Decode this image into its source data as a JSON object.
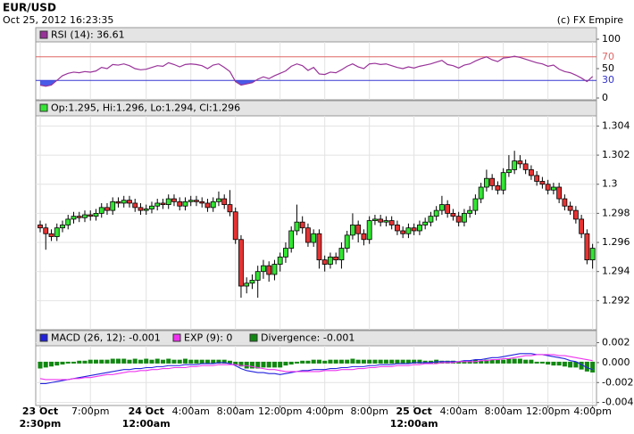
{
  "header": {
    "symbol": "EUR/USD",
    "timestamp": "Oct 25, 2012 16:23:35",
    "copyright": "(c) FX Empire"
  },
  "x_axis": {
    "xlim": [
      -0.8,
      99.7
    ],
    "xticks": [
      {
        "value": 9,
        "label": "7:00pm"
      },
      {
        "value": 27,
        "label": "4:00am"
      },
      {
        "value": 35,
        "label": "8:00am"
      },
      {
        "value": 43,
        "label": "12:00pm"
      },
      {
        "value": 51,
        "label": "4:00pm"
      },
      {
        "value": 59,
        "label": "8:00pm"
      },
      {
        "value": 75,
        "label": "4:00am"
      },
      {
        "value": 83,
        "label": "8:00am"
      },
      {
        "value": 91,
        "label": "12:00pm"
      },
      {
        "value": 99,
        "label": "4:00pm"
      }
    ],
    "day_ticks": [
      {
        "value": 0,
        "label": "23 Oct",
        "time": "2:30pm"
      },
      {
        "value": 19,
        "label": "24 Oct",
        "time": "12:00am"
      },
      {
        "value": 67,
        "label": "25 Oct",
        "time": "12:00am"
      }
    ]
  },
  "chart_data": [
    {
      "type": "line",
      "legend": "RSI (14): 36.61",
      "color": "#993399",
      "values": [
        22,
        20,
        22,
        30,
        38,
        42,
        44,
        43,
        45,
        44,
        46,
        52,
        50,
        57,
        56,
        58,
        55,
        50,
        48,
        49,
        52,
        55,
        54,
        60,
        57,
        53,
        57,
        58,
        57,
        55,
        50,
        56,
        58,
        52,
        45,
        28,
        22,
        24,
        26,
        32,
        36,
        33,
        38,
        42,
        46,
        54,
        58,
        55,
        47,
        52,
        41,
        40,
        44,
        43,
        48,
        54,
        58,
        53,
        50,
        58,
        59,
        57,
        58,
        55,
        52,
        50,
        53,
        51,
        54,
        56,
        58,
        61,
        64,
        57,
        55,
        51,
        56,
        58,
        63,
        67,
        70,
        65,
        62,
        68,
        69,
        71,
        69,
        66,
        63,
        60,
        58,
        54,
        56,
        49,
        45,
        43,
        39,
        34,
        28,
        36.61
      ],
      "ylim": [
        0,
        100
      ],
      "yticks": [
        0,
        50,
        100
      ],
      "levels": [
        {
          "value": 70,
          "color": "#e06666"
        },
        {
          "value": 30,
          "color": "#3333cc",
          "fill": "#4a5ae8"
        }
      ]
    },
    {
      "type": "candlestick",
      "legend": "Op:1.295, Hi:1.296, Lo:1.294, Cl:1.296",
      "up_color": "#33e633",
      "down_color": "#e63333",
      "open": [
        1.2972,
        1.297,
        1.2966,
        1.2964,
        1.297,
        1.2972,
        1.2976,
        1.2978,
        1.2977,
        1.2979,
        1.2978,
        1.298,
        1.2984,
        1.2982,
        1.2988,
        1.2987,
        1.2989,
        1.2987,
        1.2984,
        1.2982,
        1.2983,
        1.2985,
        1.2987,
        1.2986,
        1.299,
        1.2988,
        1.2985,
        1.2988,
        1.2989,
        1.2988,
        1.2987,
        1.2984,
        1.2988,
        1.299,
        1.2986,
        1.2981,
        1.2962,
        1.293,
        1.2932,
        1.2934,
        1.294,
        1.2944,
        1.2938,
        1.2945,
        1.295,
        1.2956,
        1.2968,
        1.2974,
        1.297,
        1.296,
        1.2966,
        1.2948,
        1.2945,
        1.295,
        1.2948,
        1.2956,
        1.2965,
        1.2972,
        1.2966,
        1.2962,
        1.2975,
        1.2976,
        1.2974,
        1.2975,
        1.2972,
        1.2968,
        1.2966,
        1.297,
        1.2968,
        1.2972,
        1.2974,
        1.2978,
        1.2982,
        1.2986,
        1.298,
        1.2978,
        1.2974,
        1.298,
        1.2982,
        1.299,
        1.2998,
        1.3004,
        1.2999,
        1.2996,
        1.3008,
        1.301,
        1.3016,
        1.3014,
        1.301,
        1.3006,
        1.3002,
        1.3,
        1.2996,
        1.2998,
        1.299,
        1.2985,
        1.2982,
        1.2976,
        1.2966,
        1.2948
      ],
      "high": [
        1.2975,
        1.2973,
        1.2969,
        1.2973,
        1.2975,
        1.2979,
        1.2981,
        1.2981,
        1.2982,
        1.2982,
        1.2983,
        1.2987,
        1.2987,
        1.2991,
        1.2991,
        1.2992,
        1.2992,
        1.299,
        1.2987,
        1.2986,
        1.2988,
        1.299,
        1.299,
        1.2993,
        1.2993,
        1.2991,
        1.2991,
        1.2992,
        1.2992,
        1.2991,
        1.299,
        1.2991,
        1.2995,
        1.2993,
        1.2996,
        1.2984,
        1.2965,
        1.2936,
        1.2938,
        1.2944,
        1.2948,
        1.2947,
        1.2948,
        1.2953,
        1.296,
        1.2971,
        1.2986,
        1.2978,
        1.2973,
        1.2969,
        1.2969,
        1.2951,
        1.2953,
        1.2953,
        1.296,
        1.2968,
        1.298,
        1.2975,
        1.2969,
        1.2978,
        1.2979,
        1.2979,
        1.2978,
        1.2978,
        1.2975,
        1.2971,
        1.2973,
        1.2973,
        1.2975,
        1.2977,
        1.2981,
        1.2985,
        1.2992,
        1.2989,
        1.2983,
        1.2981,
        1.2983,
        1.2985,
        1.2993,
        1.3001,
        1.301,
        1.3007,
        1.3002,
        1.3011,
        1.302,
        1.3023,
        1.302,
        1.3017,
        1.3013,
        1.3009,
        1.3005,
        1.3003,
        1.3001,
        1.3001,
        1.2993,
        1.2988,
        1.2985,
        1.2979,
        1.2969,
        1.2959
      ],
      "low": [
        1.2967,
        1.2955,
        1.2961,
        1.2961,
        1.2967,
        1.2969,
        1.2973,
        1.2974,
        1.2974,
        1.2975,
        1.2975,
        1.2977,
        1.2979,
        1.2979,
        1.2984,
        1.2984,
        1.2984,
        1.2981,
        1.2979,
        1.2979,
        1.298,
        1.2982,
        1.2983,
        1.2983,
        1.2985,
        1.2982,
        1.2982,
        1.2985,
        1.2985,
        1.2984,
        1.2981,
        1.2981,
        1.2985,
        1.2983,
        1.2978,
        1.2959,
        1.2922,
        1.2925,
        1.2928,
        1.2922,
        1.2935,
        1.2933,
        1.2934,
        1.294,
        1.2946,
        1.2953,
        1.2965,
        1.2966,
        1.2957,
        1.2957,
        1.2942,
        1.294,
        1.2942,
        1.2945,
        1.2942,
        1.2953,
        1.2962,
        1.296,
        1.2958,
        1.2959,
        1.2972,
        1.2971,
        1.2971,
        1.2969,
        1.2965,
        1.2963,
        1.2963,
        1.2965,
        1.2965,
        1.2969,
        1.2971,
        1.2975,
        1.2979,
        1.2977,
        1.2975,
        1.2971,
        1.2971,
        1.2977,
        1.2979,
        1.2987,
        1.2995,
        1.2996,
        1.2993,
        1.2993,
        1.3005,
        1.3007,
        1.3011,
        1.3007,
        1.3003,
        1.2999,
        1.2997,
        1.2993,
        1.2993,
        1.2987,
        1.2982,
        1.2979,
        1.2973,
        1.2963,
        1.2945,
        1.2942
      ],
      "close": [
        1.297,
        1.2966,
        1.2964,
        1.297,
        1.2972,
        1.2976,
        1.2978,
        1.2977,
        1.2979,
        1.2978,
        1.298,
        1.2984,
        1.2982,
        1.2988,
        1.2987,
        1.2989,
        1.2987,
        1.2984,
        1.2982,
        1.2983,
        1.2985,
        1.2987,
        1.2986,
        1.299,
        1.2988,
        1.2985,
        1.2988,
        1.2989,
        1.2988,
        1.2987,
        1.2984,
        1.2988,
        1.299,
        1.2986,
        1.2981,
        1.2962,
        1.293,
        1.2932,
        1.2934,
        1.294,
        1.2944,
        1.2938,
        1.2945,
        1.295,
        1.2956,
        1.2968,
        1.2974,
        1.297,
        1.296,
        1.2966,
        1.2948,
        1.2945,
        1.295,
        1.2948,
        1.2956,
        1.2965,
        1.2972,
        1.2966,
        1.2962,
        1.2975,
        1.2976,
        1.2974,
        1.2975,
        1.2972,
        1.2968,
        1.2966,
        1.297,
        1.2968,
        1.2972,
        1.2974,
        1.2978,
        1.2982,
        1.2986,
        1.298,
        1.2978,
        1.2974,
        1.298,
        1.2982,
        1.299,
        1.2998,
        1.3004,
        1.2999,
        1.2996,
        1.3008,
        1.301,
        1.3016,
        1.3014,
        1.301,
        1.3006,
        1.3002,
        1.3,
        1.2996,
        1.2998,
        1.299,
        1.2985,
        1.2982,
        1.2976,
        1.2966,
        1.2948,
        1.2956
      ],
      "ylim": [
        1.29,
        1.3047
      ],
      "yticks": [
        1.292,
        1.294,
        1.296,
        1.298,
        1.3,
        1.302,
        1.304
      ],
      "grid": true
    },
    {
      "type": "macd",
      "series": [
        {
          "name": "MACD (26, 12): -0.001",
          "color": "#2222dd",
          "style": "line",
          "values": [
            -0.0021,
            -0.0021,
            -0.002,
            -0.0019,
            -0.0018,
            -0.0017,
            -0.0016,
            -0.0015,
            -0.0014,
            -0.0013,
            -0.0012,
            -0.0011,
            -0.001,
            -0.0009,
            -0.0008,
            -0.0007,
            -0.0007,
            -0.0006,
            -0.0006,
            -0.0005,
            -0.0005,
            -0.0004,
            -0.0004,
            -0.0003,
            -0.0003,
            -0.0003,
            -0.0002,
            -0.0002,
            -0.0002,
            -0.0001,
            -0.0001,
            -0.0001,
            0,
            0,
            -0.0001,
            -0.0003,
            -0.0006,
            -0.0008,
            -0.0009,
            -0.001,
            -0.001,
            -0.0011,
            -0.0011,
            -0.0012,
            -0.0011,
            -0.001,
            -0.0009,
            -0.0008,
            -0.0008,
            -0.0007,
            -0.0007,
            -0.0007,
            -0.0006,
            -0.0006,
            -0.0005,
            -0.0005,
            -0.0004,
            -0.0004,
            -0.0004,
            -0.0003,
            -0.0003,
            -0.0002,
            -0.0002,
            -0.0002,
            -0.0001,
            -0.0001,
            -0.0001,
            0,
            0,
            0,
            0,
            0.0001,
            0.0001,
            0.0001,
            0.0001,
            0.0001,
            0.0002,
            0.0002,
            0.0003,
            0.0003,
            0.0004,
            0.0005,
            0.0005,
            0.0006,
            0.0007,
            0.0008,
            0.0009,
            0.0009,
            0.0009,
            0.0008,
            0.0008,
            0.0007,
            0.0006,
            0.0005,
            0.0004,
            0.0002,
            0.0001,
            -0.0002,
            -0.0005,
            -0.0007
          ]
        },
        {
          "name": "EXP (9): 0",
          "color": "#ee33ee",
          "style": "line",
          "values": [
            -0.0016,
            -0.0017,
            -0.0017,
            -0.0017,
            -0.0017,
            -0.0017,
            -0.0016,
            -0.0016,
            -0.0015,
            -0.0015,
            -0.0014,
            -0.0013,
            -0.0012,
            -0.0012,
            -0.0011,
            -0.001,
            -0.0009,
            -0.0009,
            -0.0008,
            -0.0008,
            -0.0007,
            -0.0007,
            -0.0006,
            -0.0006,
            -0.0005,
            -0.0005,
            -0.0005,
            -0.0004,
            -0.0004,
            -0.0003,
            -0.0003,
            -0.0003,
            -0.0002,
            -0.0002,
            -0.0002,
            -0.0002,
            -0.0003,
            -0.0003,
            -0.0004,
            -0.0005,
            -0.0006,
            -0.0007,
            -0.0007,
            -0.0008,
            -0.0009,
            -0.0009,
            -0.0009,
            -0.0009,
            -0.0009,
            -0.0009,
            -0.0009,
            -0.0008,
            -0.0008,
            -0.0008,
            -0.0007,
            -0.0007,
            -0.0007,
            -0.0006,
            -0.0006,
            -0.0005,
            -0.0005,
            -0.0004,
            -0.0004,
            -0.0004,
            -0.0003,
            -0.0003,
            -0.0003,
            -0.0002,
            -0.0002,
            -0.0001,
            -0.0001,
            -0.0001,
            0,
            0,
            0,
            0.0001,
            0.0001,
            0.0001,
            0.0001,
            0.0002,
            0.0002,
            0.0003,
            0.0003,
            0.0004,
            0.0004,
            0.0005,
            0.0006,
            0.0007,
            0.0007,
            0.0008,
            0.0008,
            0.0008,
            0.0008,
            0.0007,
            0.0007,
            0.0006,
            0.0005,
            0.0004,
            0.0003,
            0.0002
          ]
        },
        {
          "name": "Divergence: -0.001",
          "color": "#118811",
          "style": "bar",
          "values": [
            -0.0005,
            -0.0004,
            -0.0003,
            -0.0002,
            -0.0001,
            0,
            0,
            0.0001,
            0.0001,
            0.0002,
            0.0002,
            0.0002,
            0.0002,
            0.0003,
            0.0003,
            0.0003,
            0.0002,
            0.0003,
            0.0002,
            0.0003,
            0.0002,
            0.0003,
            0.0002,
            0.0003,
            0.0002,
            0.0002,
            0.0003,
            0.0002,
            0.0002,
            0.0002,
            0.0002,
            0.0002,
            0.0002,
            0.0002,
            0.0001,
            -0.0001,
            -0.0003,
            -0.0005,
            -0.0005,
            -0.0005,
            -0.0004,
            -0.0004,
            -0.0004,
            -0.0004,
            -0.0002,
            -0.0001,
            0,
            0.0001,
            0.0001,
            0.0002,
            0.0002,
            0.0001,
            0.0002,
            0.0002,
            0.0002,
            0.0002,
            0.0003,
            0.0002,
            0.0002,
            0.0002,
            0.0002,
            0.0002,
            0.0002,
            0.0002,
            0.0002,
            0.0002,
            0.0002,
            0.0002,
            0.0002,
            0.0001,
            0.0001,
            0.0002,
            0.0001,
            0.0001,
            0.0001,
            0,
            0.0001,
            0.0001,
            0.0002,
            0.0001,
            0.0002,
            0.0002,
            0.0002,
            0.0002,
            0.0003,
            0.0003,
            0.0003,
            0.0002,
            0.0002,
            0,
            0,
            -0.0001,
            -0.0002,
            -0.0002,
            -0.0003,
            -0.0004,
            -0.0004,
            -0.0006,
            -0.0008,
            -0.0009
          ]
        }
      ],
      "ylim": [
        -0.0043,
        0.0016
      ],
      "yticks": [
        0.002,
        {
          "value": 0,
          "label": "0.000"
        },
        -0.002,
        -0.004
      ],
      "grid": true
    }
  ]
}
